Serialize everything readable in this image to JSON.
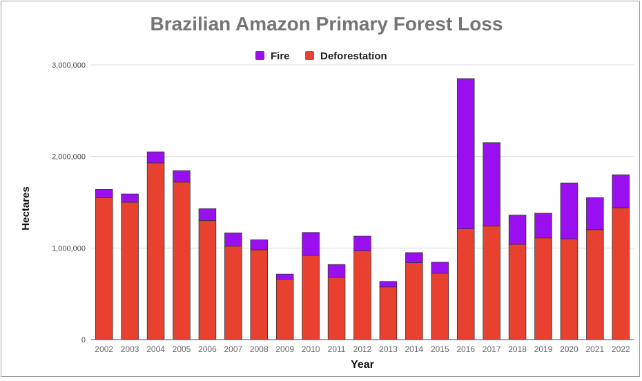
{
  "chart_data": {
    "type": "bar",
    "stacked": true,
    "title": "Brazilian Amazon Primary Forest Loss",
    "xlabel": "Year",
    "ylabel": "Hectares",
    "ylim": [
      0,
      3000000
    ],
    "yticks": [
      "0",
      "1,000,000",
      "2,000,000",
      "3,000,000"
    ],
    "grid": true,
    "legend_position": "top",
    "categories": [
      "2002",
      "2003",
      "2004",
      "2005",
      "2006",
      "2007",
      "2008",
      "2009",
      "2010",
      "2011",
      "2012",
      "2013",
      "2014",
      "2015",
      "2016",
      "2017",
      "2018",
      "2019",
      "2020",
      "2021",
      "2022"
    ],
    "series": [
      {
        "name": "Deforestation",
        "color": "#e8412f",
        "values": [
          1550000,
          1500000,
          1930000,
          1720000,
          1300000,
          1020000,
          980000,
          660000,
          920000,
          680000,
          970000,
          575000,
          840000,
          725000,
          1210000,
          1240000,
          1040000,
          1110000,
          1100000,
          1200000,
          1440000
        ]
      },
      {
        "name": "Fire",
        "color": "#9a0fef",
        "values": [
          90000,
          90000,
          120000,
          125000,
          130000,
          145000,
          110000,
          55000,
          250000,
          140000,
          160000,
          60000,
          110000,
          120000,
          1640000,
          910000,
          320000,
          270000,
          610000,
          350000,
          360000
        ]
      }
    ]
  }
}
